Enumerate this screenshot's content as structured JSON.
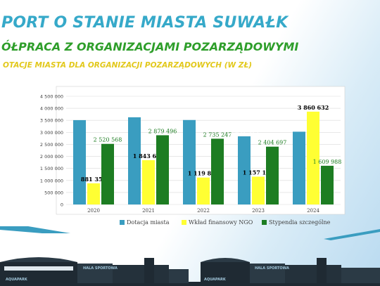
{
  "header": {
    "title": "PORT O STANIE MIASTA SUWAŁK",
    "subtitle": "ÓŁPRACA Z ORGANIZACJAMI POZARZĄDOWYMI",
    "section": "OTACJE MIASTA DLA ORGANIZACJI POZARZĄDOWYCH (W ZŁ)"
  },
  "colors": {
    "dotacja": "#3a9dc0",
    "wklad": "#ffff33",
    "stypendia": "#1d7d22"
  },
  "chart_data": {
    "type": "bar",
    "categories": [
      "2020",
      "2021",
      "2022",
      "2023",
      "2024"
    ],
    "series": [
      {
        "name": "Dotacja miasta",
        "values": [
          3508593,
          3626672,
          3513424,
          2834345,
          3026582
        ],
        "labels": [
          "3 508 593",
          "3 626 672",
          "3 513 424",
          "2 834 345",
          "3 026 582"
        ]
      },
      {
        "name": "Wkład finansowy NGO",
        "values": [
          881356,
          1843678,
          1119889,
          1157166,
          3860632
        ],
        "labels": [
          "881 356",
          "1 843 678",
          "1 119 889",
          "1 157 166",
          "3 860 632"
        ]
      },
      {
        "name": "Stypendia szczególne",
        "values": [
          2520568,
          2879496,
          2735247,
          2404697,
          1609988
        ],
        "labels": [
          "2 520 568",
          "2 879 496",
          "2 735 247",
          "2 404 697",
          "1 609 988"
        ]
      }
    ],
    "ylim": [
      0,
      4500000
    ],
    "yticks": [
      0,
      500000,
      1000000,
      1500000,
      2000000,
      2500000,
      3000000,
      3500000,
      4000000,
      4500000
    ],
    "ytick_labels": [
      "0",
      "500 000",
      "1 000 000",
      "1 500 000",
      "2 000 000",
      "2 500 000",
      "3 000 000",
      "3 500 000",
      "4 000 000",
      "4 500 000"
    ],
    "grid": true,
    "legend": "bottom"
  },
  "footer": {
    "signs": [
      "AQUAPARK",
      "HALA SPORTOWA",
      "AQUAPARK",
      "HALA SPORTOWA"
    ]
  }
}
